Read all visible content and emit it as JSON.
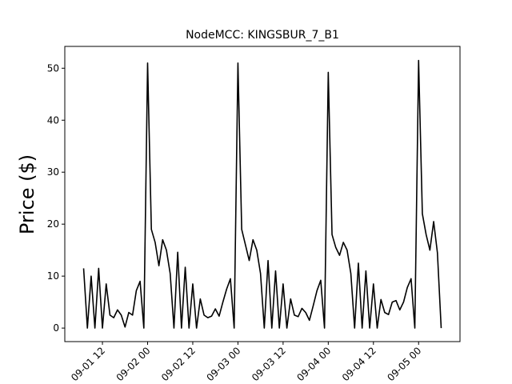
{
  "chart_data": {
    "type": "line",
    "title": "NodeMCC: KINGSBUR_7_B1",
    "y_label": "Price ($)",
    "x": [
      "09-01 07",
      "09-01 08",
      "09-01 09",
      "09-01 10",
      "09-01 11",
      "09-01 12",
      "09-01 13",
      "09-01 14",
      "09-01 15",
      "09-01 16",
      "09-01 17",
      "09-01 18",
      "09-01 19",
      "09-01 20",
      "09-01 21",
      "09-01 22",
      "09-01 23",
      "09-02 00",
      "09-02 01",
      "09-02 02",
      "09-02 03",
      "09-02 04",
      "09-02 05",
      "09-02 06",
      "09-02 07",
      "09-02 08",
      "09-02 09",
      "09-02 10",
      "09-02 11",
      "09-02 12",
      "09-02 13",
      "09-02 14",
      "09-02 15",
      "09-02 16",
      "09-02 17",
      "09-02 18",
      "09-02 19",
      "09-02 20",
      "09-02 21",
      "09-02 22",
      "09-02 23",
      "09-03 00",
      "09-03 01",
      "09-03 02",
      "09-03 03",
      "09-03 04",
      "09-03 05",
      "09-03 06",
      "09-03 07",
      "09-03 08",
      "09-03 09",
      "09-03 10",
      "09-03 11",
      "09-03 12",
      "09-03 13",
      "09-03 14",
      "09-03 15",
      "09-03 16",
      "09-03 17",
      "09-03 18",
      "09-03 19",
      "09-03 20",
      "09-03 21",
      "09-03 22",
      "09-03 23",
      "09-04 00",
      "09-04 01",
      "09-04 02",
      "09-04 03",
      "09-04 04",
      "09-04 05",
      "09-04 06",
      "09-04 07",
      "09-04 08",
      "09-04 09",
      "09-04 10",
      "09-04 11",
      "09-04 12",
      "09-04 13",
      "09-04 14",
      "09-04 15",
      "09-04 16",
      "09-04 17",
      "09-04 18",
      "09-04 19",
      "09-04 20",
      "09-04 21",
      "09-04 22",
      "09-04 23",
      "09-05 00",
      "09-05 01",
      "09-05 02",
      "09-05 03",
      "09-05 04",
      "09-05 05",
      "09-05 06"
    ],
    "values": [
      11.5,
      0,
      10,
      0,
      11.5,
      0,
      8.5,
      2.5,
      2,
      3.5,
      2.5,
      0.2,
      3,
      2.5,
      7.2,
      9,
      0,
      51,
      19,
      16.5,
      12,
      17,
      15,
      10.5,
      0,
      14.6,
      0,
      11.7,
      0,
      8.5,
      0,
      5.6,
      2.5,
      2,
      2.3,
      3.7,
      2.3,
      5,
      7.5,
      9.5,
      0,
      51,
      19,
      16,
      13,
      17,
      15,
      10.5,
      0,
      13,
      0,
      11,
      0,
      8.5,
      0,
      5.6,
      2.5,
      2.2,
      3.8,
      3,
      1.5,
      4.3,
      7.2,
      9.2,
      0,
      49.2,
      18,
      15.5,
      14,
      16.5,
      15,
      10.5,
      0,
      12.5,
      0,
      11,
      0,
      8.5,
      0,
      5.5,
      3,
      2.6,
      5,
      5.3,
      3.5,
      5,
      7.8,
      9.5,
      0,
      51.5,
      22,
      18,
      15,
      20.5,
      14.5,
      0
    ],
    "color": "#000000",
    "xlim": [
      "09-01 02",
      "09-05 11"
    ],
    "xticks": [
      "09-01 12",
      "09-02 00",
      "09-02 12",
      "09-03 00",
      "09-03 12",
      "09-04 00",
      "09-04 12",
      "09-05 00"
    ],
    "ylim": [
      -2.6,
      54.2
    ],
    "yticks": [
      0,
      10,
      20,
      30,
      40,
      50
    ]
  }
}
